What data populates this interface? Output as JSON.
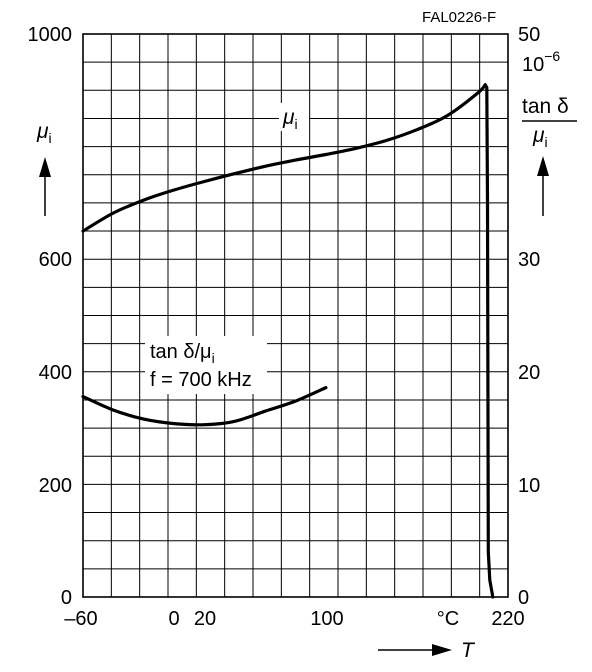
{
  "chart_data": {
    "type": "line",
    "figure_id": "FAL0226-F",
    "x_axis": {
      "label": "T",
      "unit": "°C",
      "range": [
        -60,
        220
      ],
      "tick_labels": [
        "–60",
        "0",
        "20",
        "100",
        "°C",
        "220"
      ]
    },
    "y_left": {
      "label": "μi",
      "range": [
        0,
        1000
      ],
      "tick_labels": [
        "1000",
        "600",
        "400",
        "200",
        "0"
      ]
    },
    "y_right": {
      "label_top": "tan δ",
      "label_bottom": "μi",
      "scale_note": "10",
      "scale_exp": "−6",
      "range": [
        0,
        50
      ],
      "tick_labels": [
        "50",
        "30",
        "20",
        "10",
        "0"
      ]
    },
    "grid": true,
    "series": [
      {
        "name": "μi",
        "axis": "left",
        "x": [
          -60,
          -40,
          -20,
          0,
          20,
          40,
          60,
          80,
          100,
          120,
          140,
          160,
          180,
          200,
          205,
          206,
          206.5,
          207,
          208,
          210
        ],
        "y": [
          650,
          682,
          705,
          723,
          738,
          752,
          765,
          776,
          786,
          797,
          811,
          830,
          855,
          895,
          910,
          905,
          700,
          80,
          30,
          0
        ]
      },
      {
        "name": "tan δ/μi",
        "axis": "right",
        "x": [
          -60,
          -40,
          -20,
          0,
          20,
          40,
          60,
          80,
          100
        ],
        "y": [
          17.8,
          16.6,
          15.8,
          15.4,
          15.3,
          15.6,
          16.5,
          17.4,
          18.6
        ]
      }
    ],
    "annotations": {
      "mu_curve_label": "μi",
      "tan_label_line1": "tan δ/μi",
      "tan_label_line2": "f = 700 kHz"
    }
  }
}
